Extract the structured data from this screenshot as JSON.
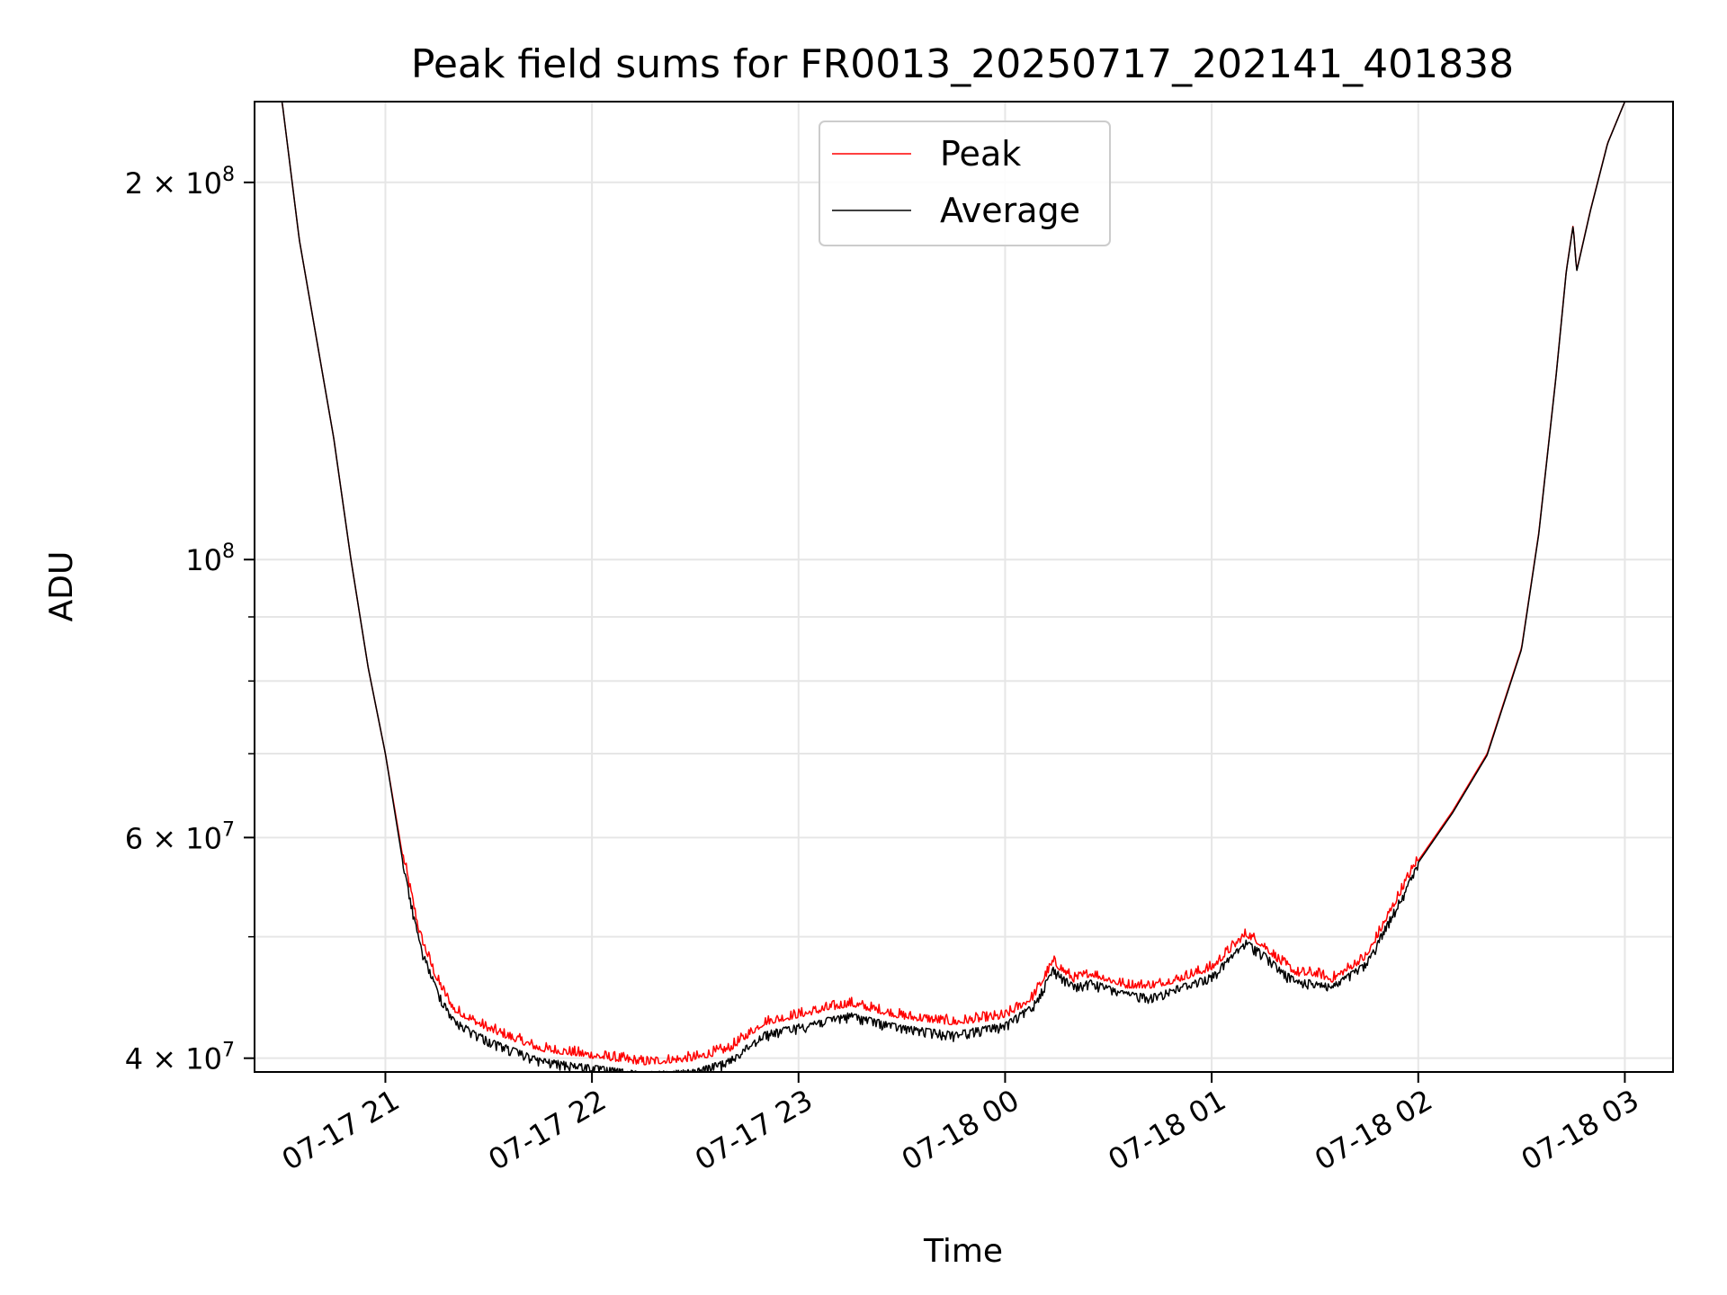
{
  "chart_data": {
    "type": "line",
    "title": "Peak field sums for FR0013_20250717_202141_401838",
    "xlabel": "Time",
    "ylabel": "ADU",
    "x_scale": "time",
    "y_scale": "log",
    "xlim": [
      "2025-07-17 20:22",
      "2025-07-18 03:14"
    ],
    "ylim": [
      39000000,
      232000000
    ],
    "x_ticks": [
      {
        "value": "2025-07-17 21:00",
        "label": "07-17 21"
      },
      {
        "value": "2025-07-17 22:00",
        "label": "07-17 22"
      },
      {
        "value": "2025-07-17 23:00",
        "label": "07-17 23"
      },
      {
        "value": "2025-07-18 00:00",
        "label": "07-18 00"
      },
      {
        "value": "2025-07-18 01:00",
        "label": "07-18 01"
      },
      {
        "value": "2025-07-18 02:00",
        "label": "07-18 02"
      },
      {
        "value": "2025-07-18 03:00",
        "label": "07-18 03"
      }
    ],
    "y_ticks": [
      {
        "value": 40000000,
        "base": "4 × 10",
        "exp": "7"
      },
      {
        "value": 60000000,
        "base": "6 × 10",
        "exp": "7"
      },
      {
        "value": 100000000,
        "base": "10",
        "exp": "8"
      },
      {
        "value": 200000000,
        "base": "2 × 10",
        "exp": "8"
      }
    ],
    "y_minor_ticks": [
      50000000,
      70000000,
      80000000,
      90000000
    ],
    "grid": true,
    "legend": "upper-center",
    "series": [
      {
        "name": "Peak",
        "color": "#ff0000",
        "noise": "upward",
        "x": [
          "2025-07-17 20:22",
          "2025-07-17 20:30",
          "2025-07-17 20:35",
          "2025-07-17 20:40",
          "2025-07-17 20:45",
          "2025-07-17 20:50",
          "2025-07-17 20:55",
          "2025-07-17 21:00",
          "2025-07-17 21:05",
          "2025-07-17 21:10",
          "2025-07-17 21:15",
          "2025-07-17 21:20",
          "2025-07-17 21:30",
          "2025-07-17 21:45",
          "2025-07-17 22:00",
          "2025-07-17 22:15",
          "2025-07-17 22:30",
          "2025-07-17 22:40",
          "2025-07-17 22:50",
          "2025-07-17 23:15",
          "2025-07-17 23:30",
          "2025-07-17 23:45",
          "2025-07-18 00:00",
          "2025-07-18 00:08",
          "2025-07-18 00:14",
          "2025-07-18 00:20",
          "2025-07-18 00:25",
          "2025-07-18 00:35",
          "2025-07-18 00:43",
          "2025-07-18 00:50",
          "2025-07-18 01:00",
          "2025-07-18 01:05",
          "2025-07-18 01:10",
          "2025-07-18 01:15",
          "2025-07-18 01:20",
          "2025-07-18 01:25",
          "2025-07-18 01:30",
          "2025-07-18 01:35",
          "2025-07-18 01:45",
          "2025-07-18 02:00",
          "2025-07-18 02:10",
          "2025-07-18 02:20",
          "2025-07-18 02:30",
          "2025-07-18 02:35",
          "2025-07-18 02:40",
          "2025-07-18 02:43",
          "2025-07-18 02:45",
          "2025-07-18 02:46",
          "2025-07-18 02:50",
          "2025-07-18 02:55",
          "2025-07-18 03:00"
        ],
        "y": [
          232000000,
          232000000,
          180000000,
          150000000,
          125000000,
          100000000,
          82000000,
          70000000,
          58000000,
          50000000,
          46000000,
          43500000,
          42000000,
          40500000,
          40000000,
          39500000,
          39800000,
          40500000,
          42500000,
          44000000,
          43000000,
          42500000,
          43000000,
          44500000,
          47500000,
          46000000,
          46500000,
          45500000,
          45500000,
          46000000,
          47000000,
          48500000,
          50000000,
          49000000,
          47500000,
          46500000,
          46500000,
          46000000,
          48000000,
          57500000,
          63000000,
          70000000,
          85000000,
          105000000,
          140000000,
          170000000,
          185000000,
          170000000,
          190000000,
          215000000,
          232000000
        ]
      },
      {
        "name": "Average",
        "color": "#000000",
        "noise": "downward",
        "x": [
          "2025-07-17 20:22",
          "2025-07-17 20:30",
          "2025-07-17 20:35",
          "2025-07-17 20:40",
          "2025-07-17 20:45",
          "2025-07-17 20:50",
          "2025-07-17 20:55",
          "2025-07-17 21:00",
          "2025-07-17 21:05",
          "2025-07-17 21:10",
          "2025-07-17 21:15",
          "2025-07-17 21:20",
          "2025-07-17 21:30",
          "2025-07-17 21:45",
          "2025-07-17 22:00",
          "2025-07-17 22:15",
          "2025-07-17 22:30",
          "2025-07-17 22:40",
          "2025-07-17 22:50",
          "2025-07-17 23:15",
          "2025-07-17 23:30",
          "2025-07-17 23:45",
          "2025-07-18 00:00",
          "2025-07-18 00:08",
          "2025-07-18 00:14",
          "2025-07-18 00:20",
          "2025-07-18 00:25",
          "2025-07-18 00:35",
          "2025-07-18 00:43",
          "2025-07-18 00:50",
          "2025-07-18 01:00",
          "2025-07-18 01:05",
          "2025-07-18 01:10",
          "2025-07-18 01:15",
          "2025-07-18 01:20",
          "2025-07-18 01:25",
          "2025-07-18 01:30",
          "2025-07-18 01:35",
          "2025-07-18 01:45",
          "2025-07-18 02:00",
          "2025-07-18 02:10",
          "2025-07-18 02:20",
          "2025-07-18 02:30",
          "2025-07-18 02:35",
          "2025-07-18 02:40",
          "2025-07-18 02:43",
          "2025-07-18 02:45",
          "2025-07-18 02:46",
          "2025-07-18 02:50",
          "2025-07-18 02:55",
          "2025-07-18 03:00"
        ],
        "y": [
          232000000,
          232000000,
          180000000,
          150000000,
          125000000,
          100000000,
          82000000,
          70000000,
          57500000,
          49500000,
          45500000,
          43000000,
          41500000,
          40000000,
          39500000,
          39000000,
          39200000,
          40000000,
          42000000,
          43500000,
          42500000,
          42000000,
          42700000,
          44200000,
          47300000,
          45800000,
          46200000,
          45200000,
          45000000,
          45700000,
          46700000,
          48200000,
          49700000,
          48700000,
          47200000,
          46200000,
          46200000,
          45800000,
          47800000,
          57300000,
          62800000,
          69800000,
          84800000,
          104800000,
          139800000,
          169800000,
          184800000,
          169800000,
          189800000,
          214800000,
          232000000
        ]
      }
    ]
  }
}
